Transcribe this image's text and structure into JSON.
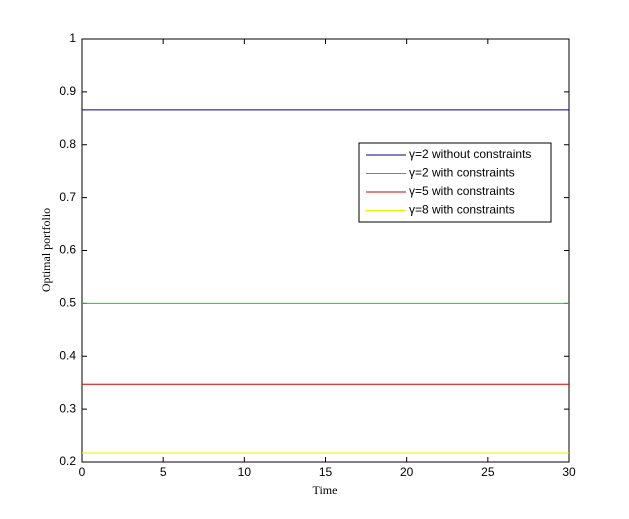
{
  "chart_data": {
    "type": "line",
    "x_label": "Time",
    "y_label": "Optimal portfolio",
    "x": [
      0,
      30
    ],
    "series": [
      {
        "name": "γ=2 without constraints",
        "color": "#00008b",
        "values": [
          0.866,
          0.866
        ]
      },
      {
        "name": "γ=2 with constraints",
        "color": "#00dd00",
        "values": [
          0.5,
          0.5
        ]
      },
      {
        "name": "γ=5 with constraints",
        "color": "#cc0000",
        "values": [
          0.347,
          0.347
        ]
      },
      {
        "name": "γ=8 with constraints",
        "color": "#eeee00",
        "values": [
          0.217,
          0.217
        ]
      }
    ],
    "xlim": [
      0,
      30
    ],
    "xticks": [
      0,
      5,
      10,
      15,
      20,
      25,
      30
    ],
    "ylim": [
      0.2,
      1
    ],
    "yticks": [
      0.2,
      0.3,
      0.4,
      0.5,
      0.6,
      0.7,
      0.8,
      0.9,
      1
    ],
    "grid": false,
    "legend": "northeast"
  }
}
